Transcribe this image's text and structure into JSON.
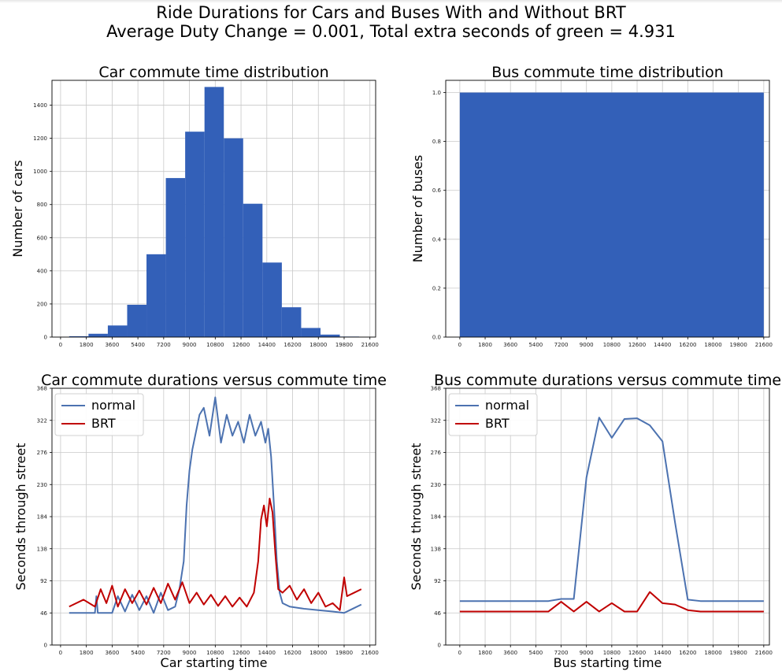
{
  "figure": {
    "title_line1": "Ride Durations for Cars and Buses With and Without BRT",
    "title_line2": "Average Duty Change = 0.001, Total extra seconds of green = 4.931"
  },
  "colors": {
    "bar": "#3360b8",
    "normal": "#4c72b0",
    "brt": "#c00000",
    "grid": "#c8c8c8"
  },
  "chart_data": [
    {
      "type": "bar",
      "title": "Car commute time distribution",
      "xlabel": "",
      "ylabel": "Number of cars",
      "xlim": [
        -600,
        22000
      ],
      "ylim": [
        0,
        1550
      ],
      "xticks": [
        0,
        1800,
        3600,
        5400,
        7200,
        9000,
        10800,
        12600,
        14400,
        16200,
        18000,
        19800,
        21600
      ],
      "yticks": [
        0,
        200,
        400,
        600,
        800,
        1000,
        1200,
        1400
      ],
      "bin_edges": [
        600,
        1950,
        3300,
        4650,
        6000,
        7350,
        8700,
        10050,
        11400,
        12750,
        14100,
        15450,
        16800,
        18150,
        19500,
        20850
      ],
      "counts": [
        5,
        20,
        70,
        195,
        500,
        960,
        1240,
        1510,
        1200,
        805,
        450,
        180,
        55,
        15,
        3
      ]
    },
    {
      "type": "bar",
      "title": "Bus commute time distribution",
      "xlabel": "",
      "ylabel": "Number of buses",
      "xlim": [
        -1000,
        22000
      ],
      "ylim": [
        0,
        1.05
      ],
      "xticks": [
        0,
        1800,
        3600,
        5400,
        7200,
        9000,
        10800,
        12600,
        14400,
        16200,
        18000,
        19800,
        21600
      ],
      "yticks": [
        0.0,
        0.2,
        0.4,
        0.6,
        0.8,
        1.0
      ],
      "bin_edges": [
        0,
        21600
      ],
      "counts": [
        1.0
      ]
    },
    {
      "type": "line",
      "title": "Car commute durations versus commute time",
      "xlabel": "Car starting time",
      "ylabel": "Seconds through street",
      "xlim": [
        -600,
        22000
      ],
      "ylim": [
        0,
        368
      ],
      "xticks": [
        0,
        1800,
        3600,
        5400,
        7200,
        9000,
        10800,
        12600,
        14400,
        16200,
        18000,
        19800,
        21600
      ],
      "yticks": [
        0,
        46,
        92,
        138,
        184,
        230,
        276,
        322,
        368
      ],
      "legend": "top-left",
      "series": [
        {
          "name": "normal",
          "x": [
            600,
            2400,
            2500,
            2600,
            3600,
            4000,
            4500,
            5000,
            5500,
            6000,
            6500,
            7000,
            7500,
            8000,
            8300,
            8600,
            8800,
            9000,
            9200,
            9400,
            9700,
            10000,
            10400,
            10800,
            11200,
            11600,
            12000,
            12400,
            12800,
            13200,
            13600,
            14000,
            14300,
            14500,
            14700,
            14900,
            15100,
            15300,
            15500,
            16000,
            17000,
            18000,
            19000,
            19800,
            20400,
            21000
          ],
          "y": [
            46,
            46,
            70,
            46,
            46,
            70,
            48,
            72,
            50,
            70,
            46,
            75,
            50,
            55,
            80,
            120,
            200,
            250,
            280,
            300,
            330,
            340,
            300,
            355,
            290,
            330,
            300,
            320,
            290,
            330,
            300,
            320,
            290,
            310,
            270,
            200,
            120,
            75,
            60,
            55,
            52,
            50,
            48,
            46,
            52,
            58
          ]
        },
        {
          "name": "BRT",
          "x": [
            600,
            1600,
            2400,
            2800,
            3200,
            3600,
            4000,
            4500,
            5000,
            5500,
            6000,
            6500,
            7000,
            7500,
            8000,
            8500,
            9000,
            9500,
            10000,
            10500,
            11000,
            11500,
            12000,
            12500,
            13000,
            13500,
            13800,
            14000,
            14200,
            14400,
            14600,
            14800,
            15000,
            15200,
            15500,
            16000,
            16500,
            17000,
            17500,
            18000,
            18500,
            19000,
            19500,
            19800,
            20000,
            20500,
            21000
          ],
          "y": [
            55,
            65,
            55,
            80,
            60,
            85,
            55,
            80,
            60,
            78,
            58,
            82,
            60,
            88,
            65,
            90,
            60,
            75,
            58,
            72,
            56,
            70,
            55,
            68,
            55,
            75,
            120,
            180,
            200,
            170,
            210,
            190,
            130,
            80,
            75,
            85,
            65,
            80,
            60,
            75,
            55,
            60,
            50,
            97,
            70,
            75,
            80
          ]
        }
      ]
    },
    {
      "type": "line",
      "title": "Bus commute durations versus commute time",
      "xlabel": "Bus starting time",
      "ylabel": "Seconds through street",
      "xlim": [
        -1000,
        22000
      ],
      "ylim": [
        0,
        368
      ],
      "xticks": [
        0,
        1800,
        3600,
        5400,
        7200,
        9000,
        10800,
        12600,
        14400,
        16200,
        18000,
        19800,
        21600
      ],
      "yticks": [
        0,
        46,
        92,
        138,
        184,
        230,
        276,
        322,
        368
      ],
      "legend": "top-left",
      "series": [
        {
          "name": "normal",
          "x": [
            0,
            1800,
            3600,
            5400,
            6300,
            7200,
            8100,
            9000,
            9900,
            10800,
            11700,
            12600,
            13500,
            14400,
            15300,
            16200,
            17100,
            18000,
            19800,
            21600
          ],
          "y": [
            63,
            63,
            63,
            63,
            63,
            66,
            66,
            240,
            326,
            297,
            324,
            325,
            315,
            292,
            175,
            65,
            63,
            63,
            63,
            63
          ]
        },
        {
          "name": "BRT",
          "x": [
            0,
            1800,
            3600,
            5400,
            6300,
            7200,
            8100,
            9000,
            9900,
            10800,
            11700,
            12600,
            13500,
            14400,
            15300,
            16200,
            17100,
            18000,
            19800,
            21600
          ],
          "y": [
            48,
            48,
            48,
            48,
            48,
            62,
            48,
            62,
            48,
            60,
            48,
            48,
            76,
            60,
            58,
            50,
            48,
            48,
            48,
            48
          ]
        }
      ]
    }
  ]
}
